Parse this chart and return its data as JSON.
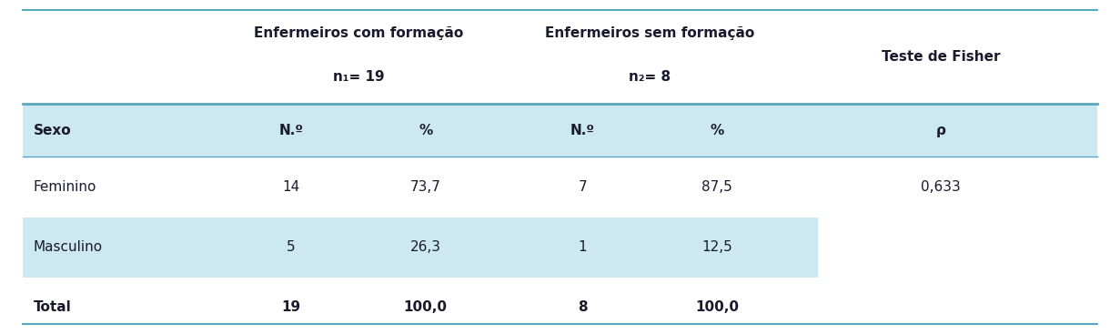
{
  "header1_line1": "Enfermeiros com formação",
  "header1_line2": "n₁= 19",
  "header2_line1": "Enfermeiros sem formação",
  "header2_line2": "n₂= 8",
  "header3": "Teste de Fisher",
  "col_headers": [
    "Sexo",
    "N.º",
    "%",
    "N.º",
    "%",
    "ρ"
  ],
  "rows": [
    [
      "Feminino",
      "14",
      "73,7",
      "7",
      "87,5",
      "0,633"
    ],
    [
      "Masculino",
      "5",
      "26,3",
      "1",
      "12,5",
      ""
    ],
    [
      "Total",
      "19",
      "100,0",
      "8",
      "100,0",
      ""
    ]
  ],
  "bg_color_light": "#cce8f0",
  "bg_color_white": "#ffffff",
  "text_color": "#1a1a2e",
  "border_color": "#5aa8c0",
  "figsize": [
    12.31,
    3.67
  ],
  "dpi": 100
}
